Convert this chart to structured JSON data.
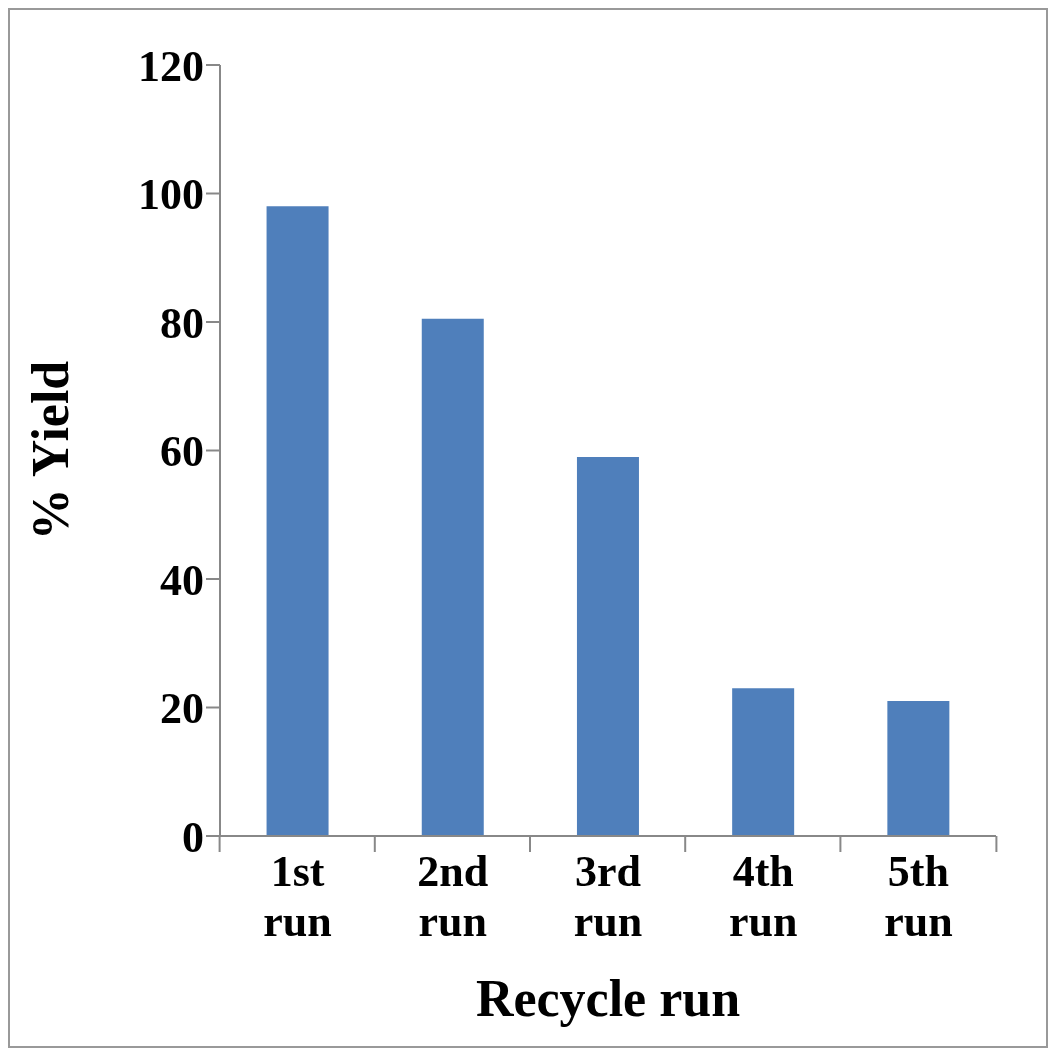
{
  "chart_data": {
    "type": "bar",
    "xlabel": "Recycle run",
    "ylabel": "% Yield",
    "categories": [
      "1st run",
      "2nd run",
      "3rd run",
      "4th run",
      "5th run"
    ],
    "values": [
      98,
      80.5,
      59,
      23,
      21
    ],
    "color": "#4f7fbb",
    "ylim": [
      0,
      120
    ],
    "yticks": [
      0,
      20,
      40,
      60,
      80,
      100,
      120
    ],
    "grid": false,
    "legend": false
  }
}
